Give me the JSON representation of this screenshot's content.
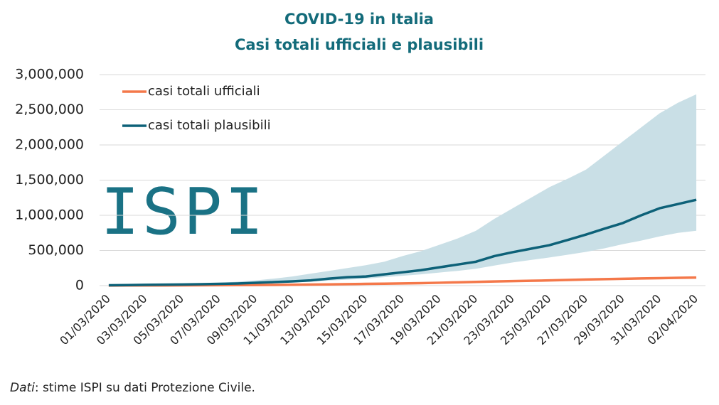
{
  "chart_data": {
    "type": "line",
    "title": "COVID-19 in Italia",
    "subtitle": "Casi totali ufficiali e plausibili",
    "logo": "ISPI",
    "source": {
      "label": "Dati",
      "text": ": stime ISPI su dati Protezione Civile."
    },
    "categories": [
      "01/03/2020",
      null,
      "03/03/2020",
      null,
      "05/03/2020",
      null,
      "07/03/2020",
      null,
      "09/03/2020",
      null,
      "11/03/2020",
      null,
      "13/03/2020",
      null,
      "15/03/2020",
      null,
      "17/03/2020",
      null,
      "19/03/2020",
      null,
      "21/03/2020",
      null,
      "23/03/2020",
      null,
      "25/03/2020",
      null,
      "27/03/2020",
      null,
      "29/03/2020",
      null,
      "31/03/2020",
      null,
      "02/04/2020"
    ],
    "series": [
      {
        "name": "casi totali ufficiali",
        "color": "#f4784a",
        "values": [
          1694,
          2036,
          2502,
          3089,
          3858,
          4636,
          5883,
          7375,
          9172,
          10149,
          12462,
          15113,
          17660,
          21157,
          24747,
          27980,
          31506,
          35713,
          41035,
          47021,
          53578,
          59138,
          63927,
          69176,
          74386,
          80539,
          86498,
          92472,
          97689,
          101739,
          105792,
          110574,
          115242
        ]
      },
      {
        "name": "casi totali plausibili",
        "color": "#0d6178",
        "values": [
          5000,
          8000,
          11000,
          14000,
          17000,
          20000,
          25000,
          30000,
          40000,
          50000,
          60000,
          75000,
          100000,
          120000,
          130000,
          160000,
          190000,
          220000,
          260000,
          300000,
          340000,
          420000,
          475000,
          525000,
          575000,
          650000,
          727000,
          810000,
          890000,
          1000000,
          1100000,
          1160000,
          1220000
        ]
      }
    ],
    "band": {
      "color": "#c9dfe6",
      "upper": [
        5000,
        9000,
        13000,
        17000,
        22000,
        30000,
        40000,
        55000,
        75000,
        100000,
        130000,
        170000,
        210000,
        250000,
        290000,
        340000,
        420000,
        490000,
        580000,
        670000,
        780000,
        950000,
        1100000,
        1250000,
        1400000,
        1520000,
        1650000,
        1850000,
        2050000,
        2250000,
        2450000,
        2600000,
        2720000
      ],
      "lower": [
        5000,
        7000,
        10000,
        12000,
        15000,
        18000,
        22000,
        26000,
        32000,
        38000,
        48000,
        58000,
        72000,
        85000,
        98000,
        120000,
        140000,
        160000,
        185000,
        210000,
        240000,
        285000,
        330000,
        365000,
        400000,
        440000,
        480000,
        530000,
        590000,
        640000,
        700000,
        750000,
        780000
      ]
    },
    "ylim": [
      0,
      3000000
    ],
    "yticks": [
      0,
      {
        "value": 500000,
        "label": "500,000"
      },
      {
        "value": 1000000,
        "label": "1,000,000"
      },
      {
        "value": 1500000,
        "label": "1,500,000"
      },
      {
        "value": 2000000,
        "label": "2,000,000"
      },
      {
        "value": 2500000,
        "label": "2,500,000"
      },
      {
        "value": 3000000,
        "label": "3,000,000"
      }
    ],
    "grid": true,
    "legend": "top-left"
  }
}
